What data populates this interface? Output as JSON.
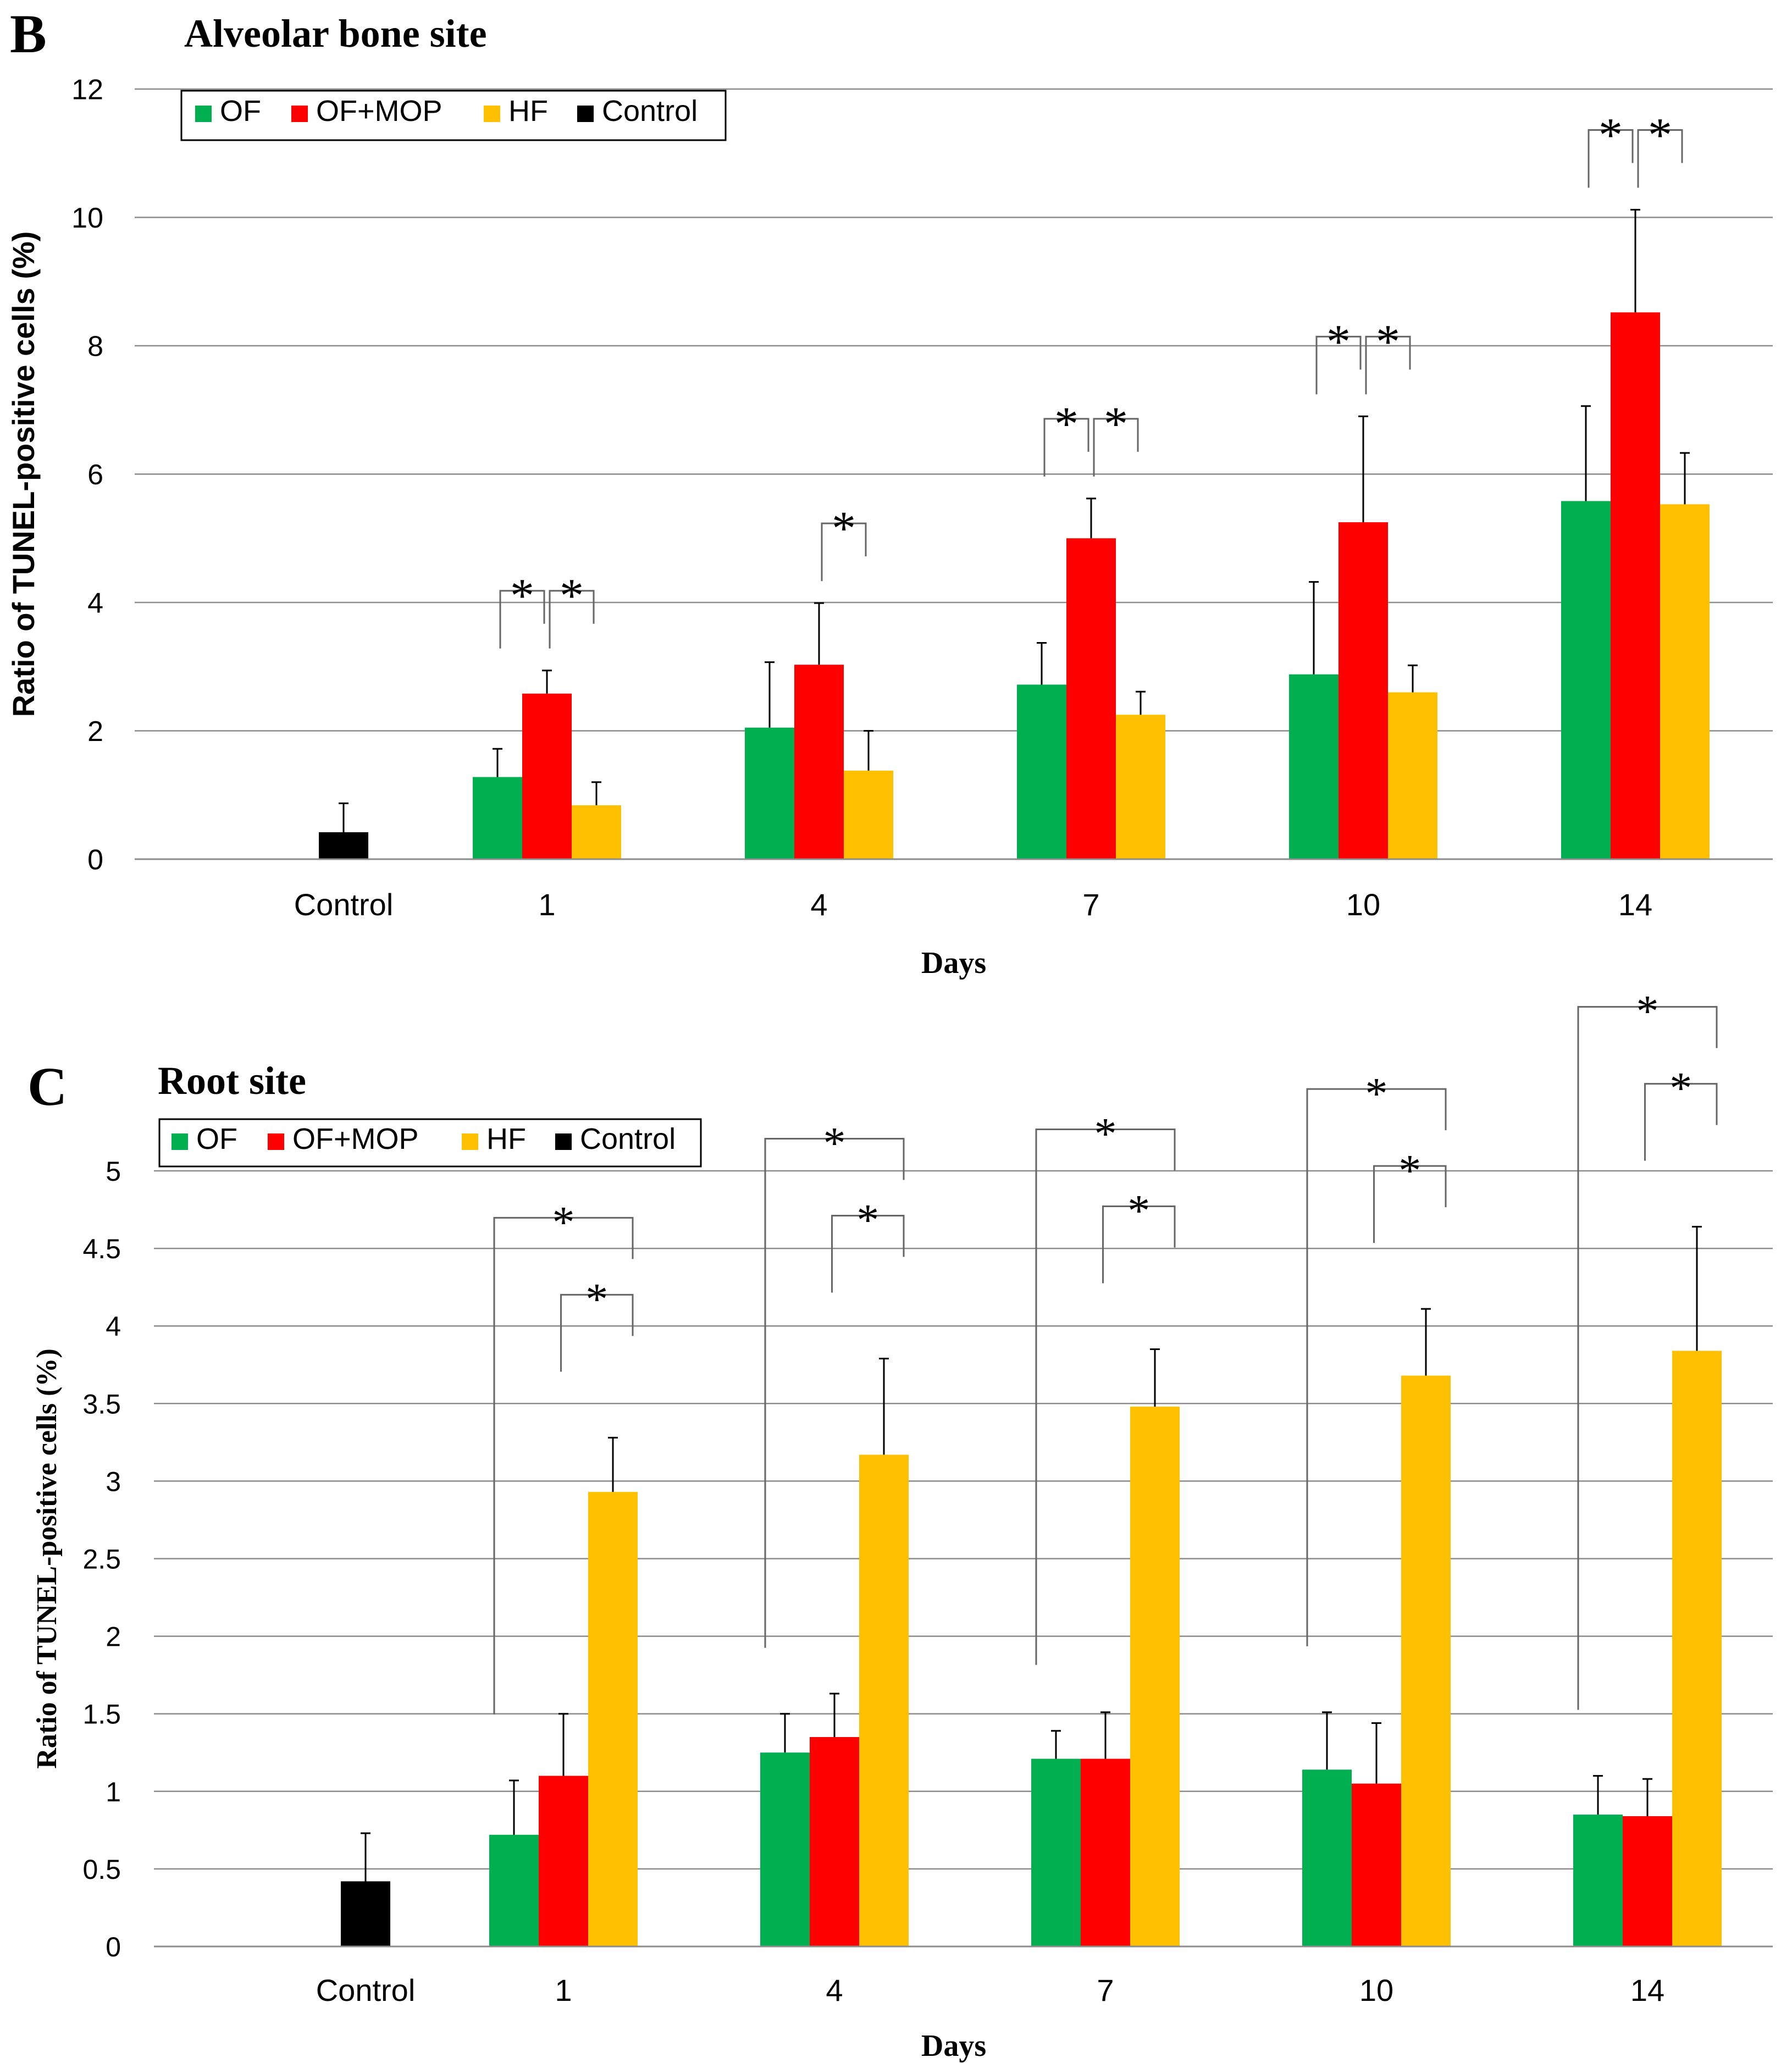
{
  "colors": {
    "OF": "#00B050",
    "OF+MOP": "#FF0000",
    "HF": "#FFC000",
    "Control": "#000000",
    "grid": "#8C8C8C",
    "axis": "#8C8C8C",
    "text": "#000000"
  },
  "chart_data": [
    {
      "type": "bar",
      "panel_label": "B",
      "title": "Alveolar bone site",
      "xlabel": "Days",
      "ylabel": "Ratio of TUNEL-positive cells (%)",
      "ylim": [
        0,
        12
      ],
      "yticks": [
        "0",
        "2",
        "4",
        "6",
        "8",
        "10",
        "12"
      ],
      "grid": true,
      "legend": [
        "OF",
        "OF+MOP",
        "HF",
        "Control"
      ],
      "legend_position": "top-left",
      "categories": [
        "Control",
        "1",
        "4",
        "7",
        "10",
        "14"
      ],
      "series": [
        {
          "name": "OF",
          "values": [
            null,
            1.28,
            2.05,
            2.72,
            2.88,
            5.58
          ],
          "errors": [
            null,
            0.44,
            1.02,
            0.65,
            1.44,
            1.48
          ]
        },
        {
          "name": "OF+MOP",
          "values": [
            null,
            2.58,
            3.03,
            5.0,
            5.25,
            8.52
          ],
          "errors": [
            null,
            0.36,
            0.96,
            0.62,
            1.65,
            1.6
          ]
        },
        {
          "name": "HF",
          "values": [
            null,
            0.84,
            1.38,
            2.25,
            2.6,
            5.53
          ],
          "errors": [
            null,
            0.36,
            0.62,
            0.36,
            0.42,
            0.8
          ]
        },
        {
          "name": "Control",
          "values": [
            0.42,
            null,
            null,
            null,
            null,
            null
          ],
          "errors": [
            0.45,
            null,
            null,
            null,
            null,
            null
          ]
        }
      ],
      "significance": [
        {
          "category": "1",
          "from": "OF",
          "to": "OF+MOP",
          "label": "*"
        },
        {
          "category": "1",
          "from": "OF+MOP",
          "to": "HF",
          "label": "*"
        },
        {
          "category": "4",
          "from": "OF+MOP",
          "to": "HF",
          "label": "*"
        },
        {
          "category": "7",
          "from": "OF",
          "to": "OF+MOP",
          "label": "*"
        },
        {
          "category": "7",
          "from": "OF+MOP",
          "to": "HF",
          "label": "*"
        },
        {
          "category": "10",
          "from": "OF",
          "to": "OF+MOP",
          "label": "*"
        },
        {
          "category": "10",
          "from": "OF+MOP",
          "to": "HF",
          "label": "*"
        },
        {
          "category": "14",
          "from": "OF",
          "to": "OF+MOP",
          "label": "*"
        },
        {
          "category": "14",
          "from": "OF+MOP",
          "to": "HF",
          "label": "*"
        }
      ]
    },
    {
      "type": "bar",
      "panel_label": "C",
      "title": "Root site",
      "xlabel": "Days",
      "ylabel": "Ratio of TUNEL-positive cells (%)",
      "ylim": [
        0,
        5
      ],
      "yticks": [
        "0",
        "0.5",
        "1",
        "1.5",
        "2",
        "2.5",
        "3",
        "3.5",
        "4",
        "4.5",
        "5"
      ],
      "grid": true,
      "legend": [
        "OF",
        "OF+MOP",
        "HF",
        "Control"
      ],
      "legend_position": "top-left",
      "categories": [
        "Control",
        "1",
        "4",
        "7",
        "10",
        "14"
      ],
      "series": [
        {
          "name": "OF",
          "values": [
            null,
            0.72,
            1.25,
            1.21,
            1.14,
            0.85
          ],
          "errors": [
            null,
            0.35,
            0.25,
            0.18,
            0.37,
            0.25
          ]
        },
        {
          "name": "OF+MOP",
          "values": [
            null,
            1.1,
            1.35,
            1.21,
            1.05,
            0.84
          ],
          "errors": [
            null,
            0.4,
            0.28,
            0.3,
            0.39,
            0.24
          ]
        },
        {
          "name": "HF",
          "values": [
            null,
            2.93,
            3.17,
            3.48,
            3.68,
            3.84
          ],
          "errors": [
            null,
            0.35,
            0.62,
            0.37,
            0.43,
            0.8
          ]
        },
        {
          "name": "Control",
          "values": [
            0.42,
            null,
            null,
            null,
            null,
            null
          ],
          "errors": [
            0.31,
            null,
            null,
            null,
            null,
            null
          ]
        }
      ],
      "significance": [
        {
          "category": "1",
          "from": "OF+MOP",
          "to": "HF",
          "label": "*"
        },
        {
          "category": "1",
          "from": "OF",
          "to": "HF",
          "label": "*"
        },
        {
          "category": "4",
          "from": "OF+MOP",
          "to": "HF",
          "label": "*"
        },
        {
          "category": "4",
          "from": "OF",
          "to": "HF",
          "label": "*"
        },
        {
          "category": "7",
          "from": "OF+MOP",
          "to": "HF",
          "label": "*"
        },
        {
          "category": "7",
          "from": "OF",
          "to": "HF",
          "label": "*"
        },
        {
          "category": "10",
          "from": "OF+MOP",
          "to": "HF",
          "label": "*"
        },
        {
          "category": "10",
          "from": "OF",
          "to": "HF",
          "label": "*"
        },
        {
          "category": "14",
          "from": "OF+MOP",
          "to": "HF",
          "label": "*"
        },
        {
          "category": "14",
          "from": "OF",
          "to": "HF",
          "label": "*"
        }
      ]
    }
  ]
}
